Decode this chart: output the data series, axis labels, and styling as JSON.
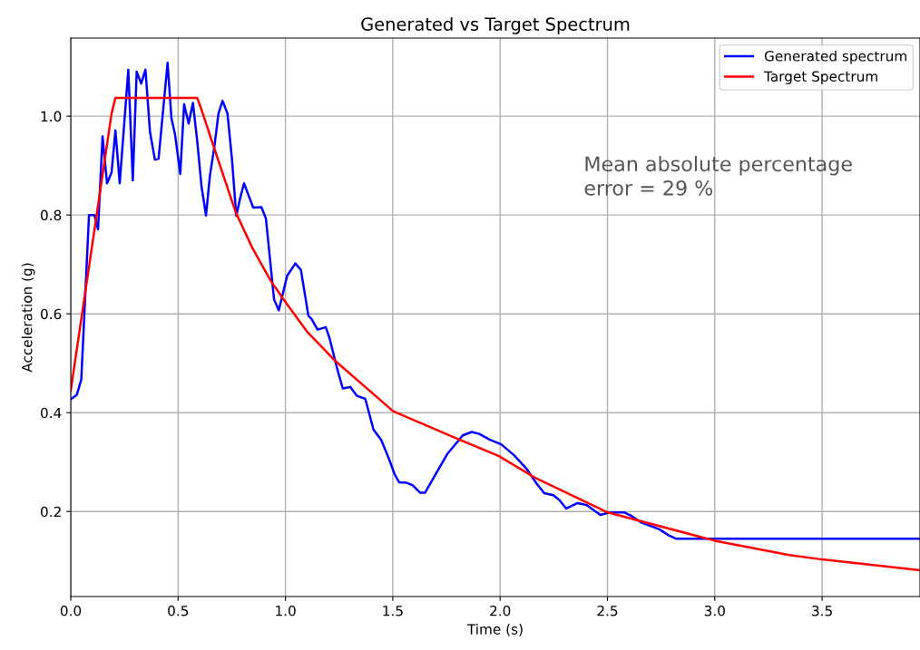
{
  "chart_data": {
    "type": "line",
    "title": "Generated vs Target Spectrum",
    "xlabel": "Time (s)",
    "ylabel": "Acceleration (g)",
    "xlim": [
      0,
      3.956
    ],
    "ylim": [
      0.028,
      1.158
    ],
    "xticks": [
      {
        "value": 0,
        "label": "0.0"
      },
      0.5,
      {
        "value": 1,
        "label": "1.0"
      },
      1.5,
      {
        "value": 2,
        "label": "2.0"
      },
      2.5,
      {
        "value": 3,
        "label": "3.0"
      },
      3.5
    ],
    "yticks": [
      0.2,
      0.4,
      0.6,
      0.8,
      {
        "value": 1,
        "label": "1.0"
      }
    ],
    "grid": true,
    "legend": "top right",
    "line_style": "solid",
    "marker": "none",
    "annotations": [
      "Mean absolute percentage\nerror = 29 %"
    ],
    "series": [
      {
        "name": "Generated spectrum",
        "color": "#0000ff",
        "x": [
          0,
          0.028,
          0.049,
          0.085,
          0.11,
          0.127,
          0.148,
          0.169,
          0.19,
          0.208,
          0.228,
          0.268,
          0.289,
          0.307,
          0.328,
          0.348,
          0.369,
          0.392,
          0.409,
          0.451,
          0.469,
          0.486,
          0.51,
          0.528,
          0.549,
          0.569,
          0.589,
          0.609,
          0.63,
          0.648,
          0.669,
          0.688,
          0.707,
          0.73,
          0.751,
          0.771,
          0.789,
          0.807,
          0.828,
          0.85,
          0.888,
          0.909,
          0.947,
          0.969,
          1.008,
          1.046,
          1.072,
          1.107,
          1.121,
          1.15,
          1.188,
          1.206,
          1.241,
          1.267,
          1.302,
          1.333,
          1.372,
          1.41,
          1.446,
          1.481,
          1.509,
          1.53,
          1.565,
          1.593,
          1.628,
          1.65,
          1.699,
          1.755,
          1.826,
          1.868,
          1.903,
          1.953,
          2.005,
          2.065,
          2.122,
          2.171,
          2.206,
          2.248,
          2.277,
          2.308,
          2.361,
          2.404,
          2.467,
          2.509,
          2.58,
          2.608,
          2.657,
          2.742,
          2.784,
          2.819,
          3.956
        ],
        "values": [
          0.427,
          0.436,
          0.467,
          0.8,
          0.8,
          0.771,
          0.959,
          0.864,
          0.886,
          0.971,
          0.864,
          1.094,
          0.87,
          1.09,
          1.066,
          1.094,
          0.968,
          0.912,
          0.914,
          1.108,
          0.996,
          0.962,
          0.883,
          1.024,
          0.985,
          1.027,
          0.95,
          0.858,
          0.799,
          0.879,
          0.938,
          1.005,
          1.031,
          1.005,
          0.913,
          0.798,
          0.834,
          0.864,
          0.84,
          0.815,
          0.816,
          0.793,
          0.629,
          0.607,
          0.677,
          0.702,
          0.689,
          0.596,
          0.59,
          0.568,
          0.573,
          0.55,
          0.489,
          0.449,
          0.452,
          0.434,
          0.428,
          0.366,
          0.345,
          0.308,
          0.275,
          0.259,
          0.258,
          0.253,
          0.238,
          0.238,
          0.275,
          0.317,
          0.354,
          0.361,
          0.357,
          0.345,
          0.336,
          0.314,
          0.287,
          0.256,
          0.237,
          0.233,
          0.223,
          0.206,
          0.217,
          0.213,
          0.193,
          0.198,
          0.198,
          0.192,
          0.178,
          0.164,
          0.152,
          0.145,
          0.145
        ]
      },
      {
        "name": "Target Spectrum",
        "color": "#ff0000",
        "x": [
          0,
          0.19,
          0.208,
          0.589,
          0.606,
          0.676,
          0.768,
          0.845,
          0.93,
          0.995,
          1.099,
          1.234,
          1.502,
          1.812,
          1.995,
          2.164,
          2.502,
          3.0,
          3.347,
          3.5,
          3.956
        ],
        "values": [
          0.445,
          1.005,
          1.037,
          1.037,
          1.017,
          0.925,
          0.806,
          0.734,
          0.668,
          0.627,
          0.565,
          0.504,
          0.403,
          0.345,
          0.312,
          0.268,
          0.198,
          0.141,
          0.112,
          0.103,
          0.081
        ]
      }
    ]
  }
}
